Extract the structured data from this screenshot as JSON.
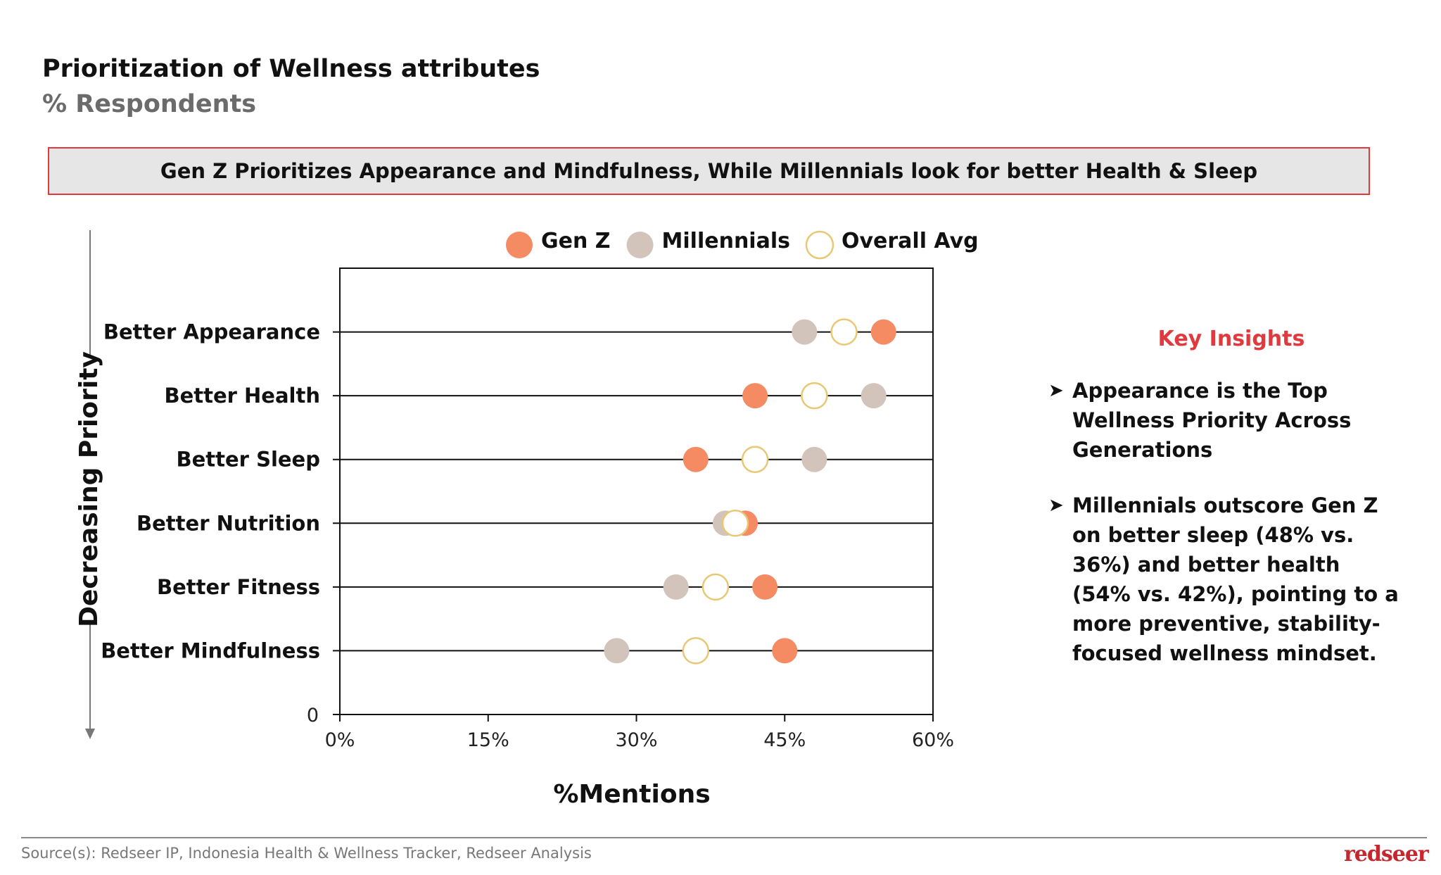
{
  "header": {
    "title": "Prioritization of Wellness attributes",
    "subtitle": "% Respondents"
  },
  "banner": "Gen Z Prioritizes Appearance and Mindfulness, While Millennials look for better Health & Sleep",
  "chart_data": {
    "type": "scatter",
    "xlabel": "%Mentions",
    "ylabel": "Decreasing Priority",
    "xlim": [
      0,
      60
    ],
    "xticks": [
      "0%",
      "15%",
      "30%",
      "45%",
      "60%"
    ],
    "xtick_values": [
      0,
      15,
      30,
      45,
      60
    ],
    "ylim": [
      0,
      7
    ],
    "y_zero_label": "0",
    "categories": [
      "Better Appearance",
      "Better Health",
      "Better Sleep",
      "Better Nutrition",
      "Better Fitness",
      "Better Mindfulness"
    ],
    "legend_placement": "top",
    "grid": false,
    "series": [
      {
        "name": "Gen Z",
        "color": "#F58B63",
        "values": [
          55,
          42,
          36,
          41,
          43,
          45
        ]
      },
      {
        "name": "Millennials",
        "color": "#D3C4BB",
        "values": [
          47,
          54,
          48,
          39,
          34,
          28
        ]
      },
      {
        "name": "Overall Avg",
        "color": "#FFFFFF",
        "stroke": "#E8C874",
        "values": [
          51,
          48,
          42,
          40,
          38,
          36
        ]
      }
    ]
  },
  "insights": {
    "title": "Key Insights",
    "items": [
      "Appearance is the Top Wellness Priority Across Generations",
      "Millennials outscore Gen Z on better sleep (48% vs. 36%) and better health (54% vs. 42%), pointing to a more preventive, stability-focused wellness mindset."
    ]
  },
  "footer": {
    "source": "Source(s): Redseer IP, Indonesia Health & Wellness Tracker, Redseer Analysis",
    "logo": "redseer"
  }
}
